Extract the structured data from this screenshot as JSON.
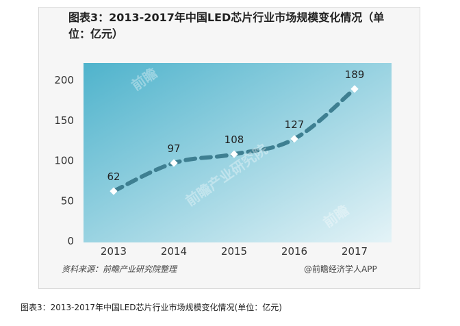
{
  "chart_data": {
    "type": "line",
    "title": "图表3：2013-2017年中国LED芯片行业市场规模变化情况（单位：亿元）",
    "categories": [
      "2013",
      "2014",
      "2015",
      "2016",
      "2017"
    ],
    "values": [
      62,
      97,
      108,
      127,
      189
    ],
    "data_labels": [
      "62",
      "97",
      "108",
      "127",
      "189"
    ],
    "ylim": [
      0,
      200
    ],
    "yticks": [
      "0",
      "50",
      "100",
      "150",
      "200"
    ],
    "xlabel": "",
    "ylabel": "",
    "grid": false,
    "line_style": "dashed",
    "line_color": "#3e7f91",
    "background_gradient": [
      "#4fb3cc",
      "#e4f3f7"
    ]
  },
  "source": "资料来源：前瞻产业研究院整理",
  "brand": "@前瞻经济学人APP",
  "caption": "图表3：2013-2017年中国LED芯片行业市场规模变化情况(单位：亿元)"
}
